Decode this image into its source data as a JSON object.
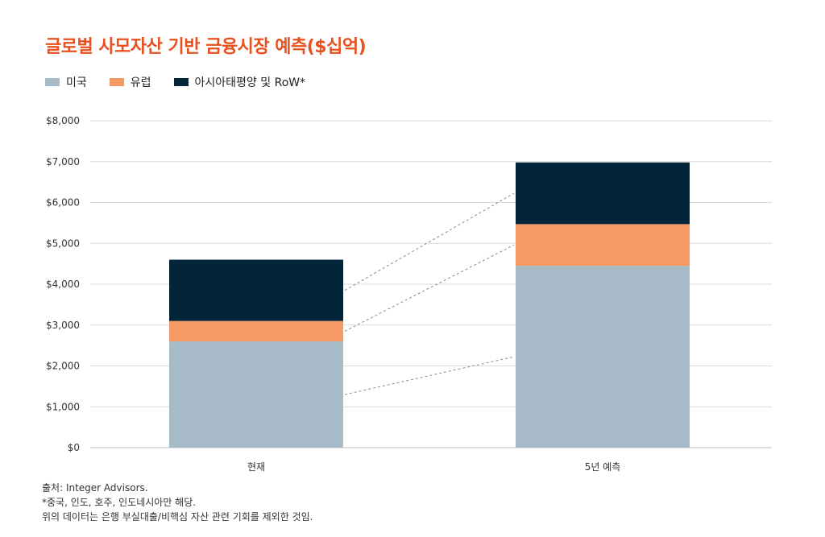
{
  "chart_data": {
    "type": "bar",
    "stacked": true,
    "title": "글로벌 사모자산 기반 금융시장 예측($십억)",
    "categories": [
      "현재",
      "5년 예측"
    ],
    "series": [
      {
        "name": "미국",
        "color": "#a7bac7",
        "values": [
          2600,
          4450
        ]
      },
      {
        "name": "유럽",
        "color": "#f59a64",
        "values": [
          500,
          1020
        ]
      },
      {
        "name": "아시아태평양 및 RoW*",
        "color": "#02253a",
        "values": [
          1500,
          1510
        ]
      }
    ],
    "ylim": [
      0,
      8000
    ],
    "yticks": [
      "$0",
      "$1,000",
      "$2,000",
      "$3,000",
      "$4,000",
      "$5,000",
      "$6,000",
      "$7,000",
      "$8,000"
    ],
    "ytick_values": [
      0,
      1000,
      2000,
      3000,
      4000,
      5000,
      6000,
      7000,
      8000
    ],
    "grid": true,
    "legend_position": "top-left",
    "xlabel": "",
    "ylabel": ""
  },
  "footer": {
    "source": "출처: Integer Advisors.",
    "note1": "*중국, 인도, 호주, 인도네시아만 해당.",
    "note2": "위의 데이터는 은행 부실대출/비핵심 자산 관련 기회를 제외한 것임."
  }
}
